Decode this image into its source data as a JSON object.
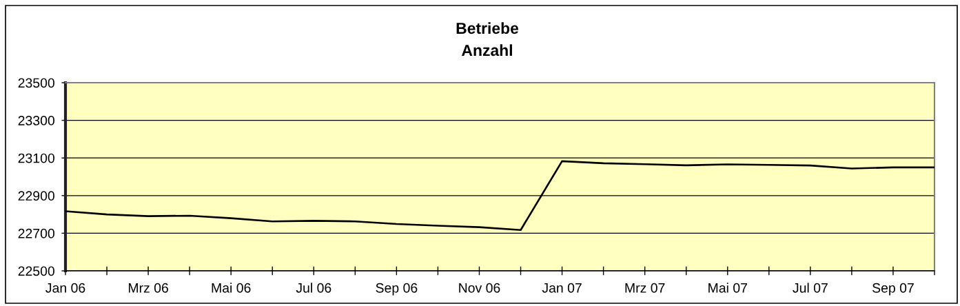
{
  "chart_data": {
    "type": "line",
    "title": "Betriebe",
    "subtitle": "Anzahl",
    "categories": [
      "Jan 06",
      null,
      "Mrz 06",
      null,
      "Mai 06",
      null,
      "Jul 06",
      null,
      "Sep 06",
      null,
      "Nov 06",
      null,
      "Jan 07",
      null,
      "Mrz 07",
      null,
      "Mai 07",
      null,
      "Jul 07",
      null,
      "Sep 07",
      null
    ],
    "series": [
      {
        "color": "#000000",
        "values": [
          22817,
          22800,
          22791,
          22793,
          22780,
          22763,
          22766,
          22763,
          22749,
          22740,
          22732,
          22717,
          23083,
          23072,
          23067,
          23061,
          23066,
          23063,
          23060,
          23044,
          23050,
          23050
        ]
      }
    ],
    "ylim": [
      22500,
      23500
    ],
    "yticks": [
      22500,
      22700,
      22900,
      23100,
      23300,
      23500
    ],
    "grid": "y",
    "line_style": "solid"
  }
}
